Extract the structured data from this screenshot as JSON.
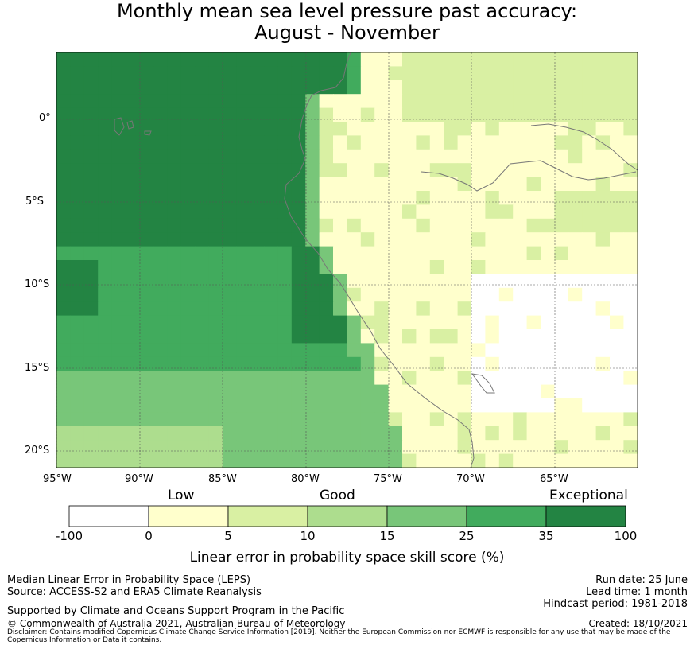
{
  "title_line1": "Monthly mean sea level pressure past accuracy:",
  "title_line2": "August - November",
  "axes": {
    "lon_labels": [
      "95°W",
      "90°W",
      "85°W",
      "80°W",
      "75°W",
      "70°W",
      "65°W"
    ],
    "lat_labels": [
      "0°",
      "5°S",
      "10°S",
      "15°S",
      "20°S"
    ]
  },
  "colorbar": {
    "categories": {
      "low": "Low",
      "good": "Good",
      "exceptional": "Exceptional"
    },
    "ticks": [
      "-100",
      "0",
      "5",
      "10",
      "15",
      "25",
      "35",
      "100"
    ],
    "colors": [
      "#ffffff",
      "#ffffcc",
      "#d9f0a3",
      "#addd8e",
      "#78c679",
      "#41ab5d",
      "#238443"
    ],
    "title": "Linear error in probability space skill score (%)"
  },
  "footer": {
    "left_line1": "Median Linear Error in Probability Space (LEPS)",
    "left_line2": "Source: ACCESS-S2 and ERA5 Climate Reanalysis",
    "left_line3": "Supported by Climate and Oceans Support Program in the Pacific",
    "left_line4": "© Commonwealth of Australia 2021, Australian Bureau of Meteorology",
    "right_line1": "Run date: 25 June",
    "right_line2": "Lead time: 1 month",
    "right_line3": "Hindcast period: 1981-2018",
    "right_line4": "Created: 18/10/2021",
    "disclaimer": "Disclaimer: Contains modified Copernicus Climate Change Service Information [2019]. Neither the European Commission nor ECMWF is responsible for any use that may be made of the Copernicus Information or Data it contains."
  }
}
